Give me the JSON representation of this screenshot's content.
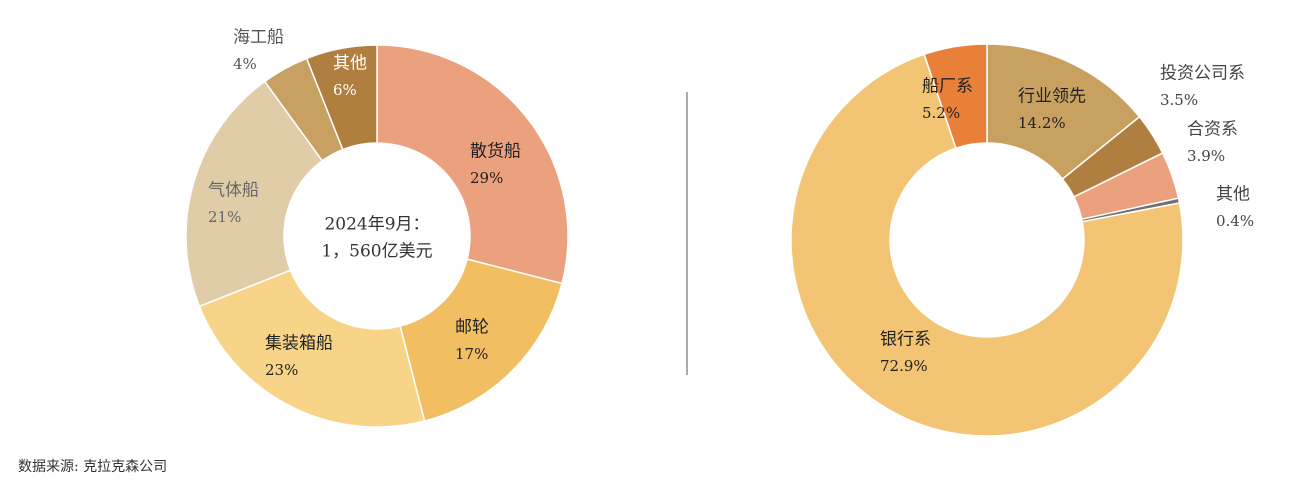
{
  "charts": [
    {
      "type": "donut",
      "center_text": [
        "2024年9月：",
        "1，560亿美元"
      ],
      "categories": [
        "散货船",
        "邮轮",
        "集装箱船",
        "气体船",
        "海工船",
        "其他"
      ],
      "values": [
        29,
        17,
        23,
        21,
        4,
        6
      ],
      "value_labels": [
        "29%",
        "17%",
        "23%",
        "21%",
        "4%",
        "6%"
      ],
      "colors": [
        "#eba07e",
        "#f2be62",
        "#f7d488",
        "#e0cda8",
        "#c8a062",
        "#b07f40"
      ]
    },
    {
      "type": "donut",
      "categories": [
        "行业领先",
        "投资公司系",
        "合资系",
        "其他",
        "银行系",
        "船厂系"
      ],
      "values": [
        14.2,
        3.5,
        3.9,
        0.4,
        72.9,
        5.2
      ],
      "value_labels": [
        "14.2%",
        "3.5%",
        "3.9%",
        "0.4%",
        "72.9%",
        "5.2%"
      ],
      "colors": [
        "#c8a060",
        "#b07f40",
        "#eba07e",
        "#707070",
        "#f2c474",
        "#e8803a"
      ]
    }
  ],
  "source": "数据来源: 克拉克森公司"
}
